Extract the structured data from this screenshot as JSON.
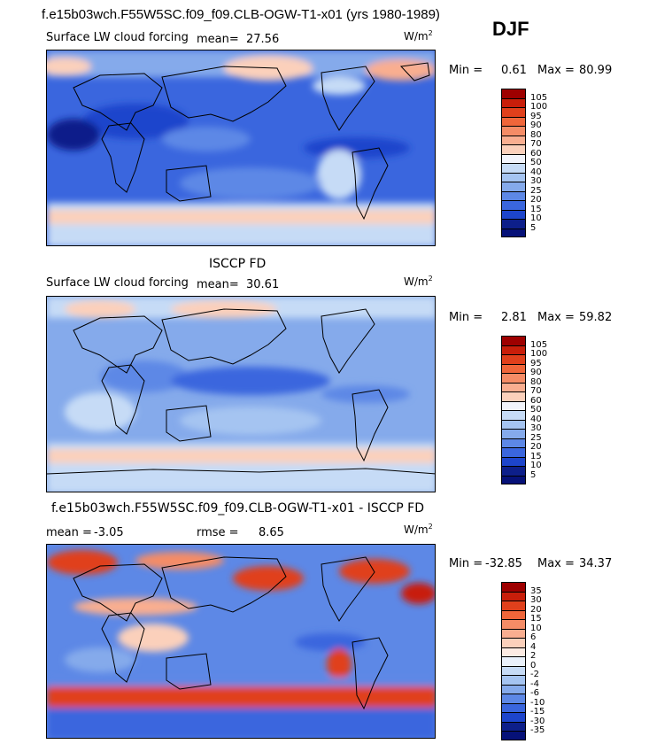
{
  "header": {
    "model_title": "f.e15b03wch.F55W5SC.f09_f09.CLB-OGW-T1-x01 (yrs 1980-1989)",
    "season": "DJF"
  },
  "panels": [
    {
      "id": "model",
      "subtitle": "",
      "variable": "Surface LW cloud forcing",
      "mean_label": "mean=",
      "mean_value": "27.56",
      "units_base": "W/m",
      "units_exp": "2",
      "min_label": "Min =",
      "min_value": "0.61",
      "max_label": "Max =",
      "max_value": "80.99",
      "legend": {
        "levels": [
          "105",
          "100",
          "95",
          "90",
          "80",
          "70",
          "60",
          "50",
          "40",
          "30",
          "25",
          "20",
          "15",
          "10",
          "5"
        ],
        "colors": [
          "#9e0000",
          "#c81e0a",
          "#e0401c",
          "#f0663a",
          "#f58c66",
          "#f9ae90",
          "#fbd0bb",
          "#f2f4fb",
          "#c6dbf6",
          "#a5c4f1",
          "#85aaeb",
          "#5d88e6",
          "#3a66de",
          "#1d45cc",
          "#0d1f8a",
          "#061178"
        ]
      }
    },
    {
      "id": "obs",
      "subtitle": "ISCCP FD",
      "variable": "Surface LW cloud forcing",
      "mean_label": "mean=",
      "mean_value": "30.61",
      "units_base": "W/m",
      "units_exp": "2",
      "min_label": "Min =",
      "min_value": "2.81",
      "max_label": "Max =",
      "max_value": "59.82",
      "legend": {
        "levels": [
          "105",
          "100",
          "95",
          "90",
          "80",
          "70",
          "60",
          "50",
          "40",
          "30",
          "25",
          "20",
          "15",
          "10",
          "5"
        ],
        "colors": [
          "#9e0000",
          "#c81e0a",
          "#e0401c",
          "#f0663a",
          "#f58c66",
          "#f9ae90",
          "#fbd0bb",
          "#f2f4fb",
          "#c6dbf6",
          "#a5c4f1",
          "#85aaeb",
          "#5d88e6",
          "#3a66de",
          "#1d45cc",
          "#0d1f8a",
          "#061178"
        ]
      }
    },
    {
      "id": "diff",
      "subtitle": "f.e15b03wch.F55W5SC.f09_f09.CLB-OGW-T1-x01 - ISCCP FD",
      "mean_label": "mean =",
      "mean_value": "-3.05",
      "rmse_label": "rmse =",
      "rmse_value": "8.65",
      "units_base": "W/m",
      "units_exp": "2",
      "min_label": "Min =",
      "min_value": "-32.85",
      "max_label": "Max =",
      "max_value": "34.37",
      "legend": {
        "levels": [
          "35",
          "30",
          "20",
          "15",
          "10",
          "6",
          "4",
          "2",
          "0",
          "-2",
          "-4",
          "-6",
          "-10",
          "-15",
          "-30",
          "-35"
        ],
        "colors": [
          "#9e0000",
          "#c81e0a",
          "#e0401c",
          "#f0663a",
          "#f58c66",
          "#f9ae90",
          "#fbd0bb",
          "#fdebe3",
          "#eaf1fb",
          "#c6dbf6",
          "#a5c4f1",
          "#85aaeb",
          "#5d88e6",
          "#3a66de",
          "#1d45cc",
          "#0d1f8a",
          "#061178"
        ]
      }
    }
  ]
}
